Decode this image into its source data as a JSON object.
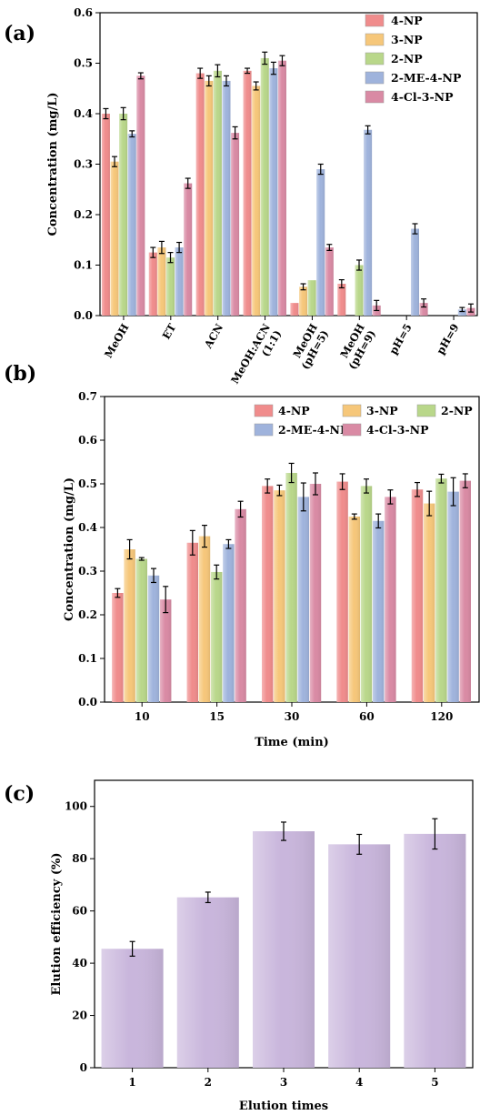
{
  "colors": {
    "4-NP": "#f08c8c",
    "3-NP": "#f6c77a",
    "2-NP": "#b9d78a",
    "2-ME-4-NP": "#9fb3dc",
    "4-Cl-3-NP": "#d98aa4",
    "elution": "#c9b6dc"
  },
  "chart_data": [
    {
      "panel_label": "(a)",
      "type": "bar",
      "ylabel": "Concentration (mg/L)",
      "ylim": [
        0,
        0.6
      ],
      "yticks": [
        "0.0",
        "0.1",
        "0.2",
        "0.3",
        "0.4",
        "0.5",
        "0.6"
      ],
      "categories": [
        "MeOH",
        "ET",
        "ACN",
        "MeOH:ACN (1:1)",
        "MeOH (pH=5)",
        "MeOH (pH=9)",
        "pH=5",
        "pH=9"
      ],
      "category_lines": [
        [
          "MeOH"
        ],
        [
          "ET"
        ],
        [
          "ACN"
        ],
        [
          "MeOH:ACN",
          "(1:1)"
        ],
        [
          "MeOH",
          "(pH=5)"
        ],
        [
          "MeOH",
          "(pH=9)"
        ],
        [
          "pH=5"
        ],
        [
          "pH=9"
        ]
      ],
      "legend_position": "top-right",
      "series": [
        {
          "name": "4-NP",
          "values": [
            0.4,
            0.125,
            0.48,
            0.485,
            0.025,
            0.063,
            0,
            0
          ],
          "errors": [
            0.01,
            0.01,
            0.01,
            0.005,
            0,
            0.008,
            0,
            0
          ]
        },
        {
          "name": "3-NP",
          "values": [
            0.305,
            0.135,
            0.465,
            0.455,
            0.057,
            0,
            0,
            0
          ],
          "errors": [
            0.01,
            0.012,
            0.01,
            0.008,
            0.006,
            0,
            0,
            0
          ]
        },
        {
          "name": "2-NP",
          "values": [
            0.4,
            0.115,
            0.485,
            0.51,
            0.07,
            0.1,
            0,
            0
          ],
          "errors": [
            0.012,
            0.01,
            0.012,
            0.012,
            0,
            0.01,
            0,
            0
          ]
        },
        {
          "name": "2-ME-4-NP",
          "values": [
            0.36,
            0.135,
            0.465,
            0.49,
            0.29,
            0.368,
            0.172,
            0.012
          ],
          "errors": [
            0.006,
            0.01,
            0.01,
            0.012,
            0.01,
            0.008,
            0.01,
            0.004
          ]
        },
        {
          "name": "4-Cl-3-NP",
          "values": [
            0.475,
            0.262,
            0.362,
            0.505,
            0.135,
            0.02,
            0.025,
            0.015
          ],
          "errors": [
            0.006,
            0.01,
            0.012,
            0.01,
            0.006,
            0.01,
            0.008,
            0.008
          ]
        }
      ]
    },
    {
      "panel_label": "(b)",
      "type": "bar",
      "xlabel": "Time (min)",
      "ylabel": "Concentration (mg/L)",
      "ylim": [
        0,
        0.7
      ],
      "yticks": [
        "0.0",
        "0.1",
        "0.2",
        "0.3",
        "0.4",
        "0.5",
        "0.6",
        "0.7"
      ],
      "categories": [
        "10",
        "15",
        "30",
        "60",
        "120"
      ],
      "legend_position": "top-right",
      "series": [
        {
          "name": "4-NP",
          "values": [
            0.25,
            0.365,
            0.495,
            0.505,
            0.487
          ],
          "errors": [
            0.01,
            0.028,
            0.016,
            0.018,
            0.016
          ]
        },
        {
          "name": "3-NP",
          "values": [
            0.35,
            0.38,
            0.485,
            0.425,
            0.455
          ],
          "errors": [
            0.022,
            0.025,
            0.012,
            0.006,
            0.028
          ]
        },
        {
          "name": "2-NP",
          "values": [
            0.328,
            0.298,
            0.525,
            0.495,
            0.512
          ],
          "errors": [
            0.003,
            0.016,
            0.022,
            0.016,
            0.01
          ]
        },
        {
          "name": "2-ME-4-NP",
          "values": [
            0.29,
            0.362,
            0.47,
            0.415,
            0.482
          ],
          "errors": [
            0.016,
            0.01,
            0.032,
            0.016,
            0.032
          ]
        },
        {
          "name": "4-Cl-3-NP",
          "values": [
            0.235,
            0.442,
            0.5,
            0.47,
            0.507
          ],
          "errors": [
            0.03,
            0.018,
            0.025,
            0.016,
            0.016
          ]
        }
      ]
    },
    {
      "panel_label": "(c)",
      "type": "bar",
      "xlabel": "Elution times",
      "ylabel": "Elution efficiency (%)",
      "ylim": [
        0,
        110
      ],
      "yticks": [
        "0",
        "20",
        "40",
        "60",
        "80",
        "100"
      ],
      "categories": [
        "1",
        "2",
        "3",
        "4",
        "5"
      ],
      "values": [
        45.5,
        65.2,
        90.5,
        85.5,
        89.5
      ],
      "errors": [
        2.8,
        2.0,
        3.5,
        3.8,
        5.8
      ]
    }
  ]
}
